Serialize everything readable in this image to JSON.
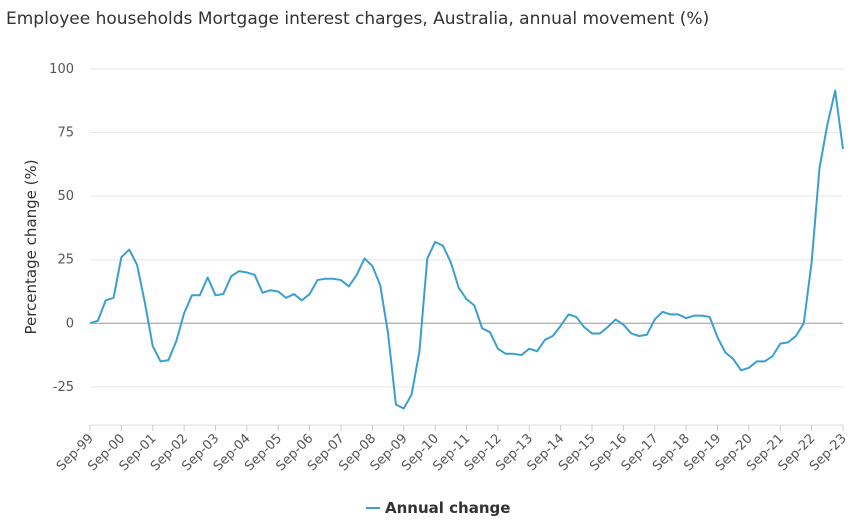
{
  "chart_data": {
    "type": "line",
    "title": "Employee households Mortgage interest charges, Australia, annual movement (%)",
    "y_label": "Percentage change (%)",
    "categories": [
      "Sep-99",
      null,
      null,
      null,
      "Sep-00",
      null,
      null,
      null,
      "Sep-01",
      null,
      null,
      null,
      "Sep-02",
      null,
      null,
      null,
      "Sep-03",
      null,
      null,
      null,
      "Sep-04",
      null,
      null,
      null,
      "Sep-05",
      null,
      null,
      null,
      "Sep-06",
      null,
      null,
      null,
      "Sep-07",
      null,
      null,
      null,
      "Sep-08",
      null,
      null,
      null,
      "Sep-09",
      null,
      null,
      null,
      "Sep-10",
      null,
      null,
      null,
      "Sep-11",
      null,
      null,
      null,
      "Sep-12",
      null,
      null,
      null,
      "Sep-13",
      null,
      null,
      null,
      "Sep-14",
      null,
      null,
      null,
      "Sep-15",
      null,
      null,
      null,
      "Sep-16",
      null,
      null,
      null,
      "Sep-17",
      null,
      null,
      null,
      "Sep-18",
      null,
      null,
      null,
      "Sep-19",
      null,
      null,
      null,
      "Sep-20",
      null,
      null,
      null,
      "Sep-21",
      null,
      null,
      null,
      "Sep-22",
      null,
      null,
      null,
      "Sep-23"
    ],
    "series": [
      {
        "name": "Annual change",
        "color": "#3a9fd0",
        "values": [
          0,
          1,
          9,
          10,
          26,
          29,
          23,
          8,
          -9,
          -15,
          -14.5,
          -7,
          4,
          11,
          11,
          18,
          11,
          11.5,
          18.5,
          20.5,
          20,
          19,
          12,
          13,
          12.5,
          10,
          11.5,
          9,
          11.5,
          17,
          17.5,
          17.5,
          17,
          14.5,
          19,
          25.5,
          22.5,
          15,
          -4,
          -32,
          -33.5,
          -28,
          -11,
          25.5,
          32,
          30.5,
          24,
          14,
          9.5,
          7,
          -2,
          -3.5,
          -10,
          -12,
          -12,
          -12.5,
          -10,
          -11,
          -6.5,
          -5,
          -1,
          3.5,
          2.5,
          -1.5,
          -4,
          -4,
          -1.5,
          1.5,
          -0.5,
          -4,
          -5,
          -4.5,
          1.5,
          4.5,
          3.5,
          3.5,
          2,
          3,
          3,
          2.5,
          -5.5,
          -11.5,
          -14,
          -18.5,
          -17.5,
          -15,
          -15,
          -13,
          -8,
          -7.5,
          -5,
          0,
          24,
          61,
          78,
          91.5,
          68.5
        ]
      }
    ],
    "ylim": [
      -40,
      100
    ],
    "yticks": [
      -25,
      0,
      25,
      50,
      75,
      100
    ],
    "grid": true
  }
}
